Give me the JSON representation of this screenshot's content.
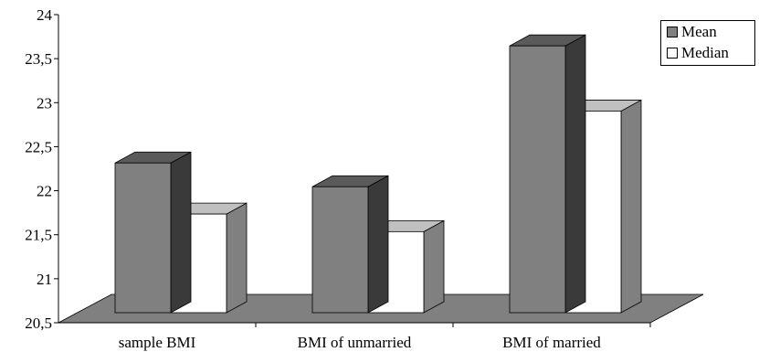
{
  "chart_data": {
    "type": "bar",
    "categories": [
      "sample BMI",
      "BMI of unmarried",
      "BMI of married"
    ],
    "series": [
      {
        "name": "Mean",
        "values": [
          22.45,
          22.18,
          23.78
        ],
        "color": "#808080"
      },
      {
        "name": "Median",
        "values": [
          21.87,
          21.67,
          23.04
        ],
        "color": "#ffffff"
      }
    ],
    "ylim": [
      20.5,
      24
    ],
    "yticks": [
      "20,5",
      "21",
      "21,5",
      "22",
      "22,5",
      "23",
      "23,5",
      "24"
    ],
    "ytick_values": [
      20.5,
      21,
      21.5,
      22,
      22.5,
      23,
      23.5,
      24
    ],
    "legend_position": "top-right",
    "style": "3d-column",
    "colors": {
      "floor": "#808080",
      "mean_side": "#3a3a3a",
      "mean_top": "#5a5a5a",
      "median_side": "#808080",
      "median_top": "#c0c0c0"
    }
  }
}
